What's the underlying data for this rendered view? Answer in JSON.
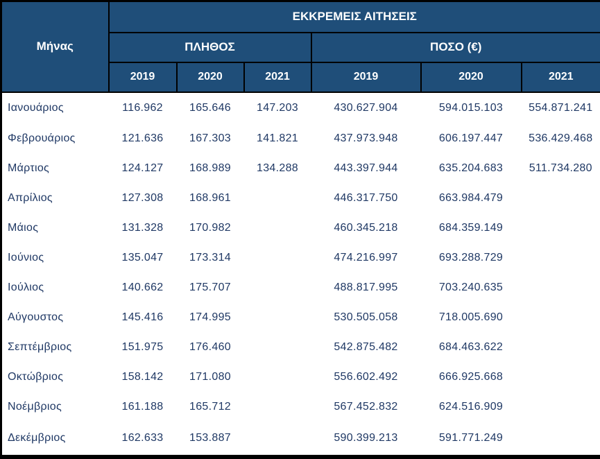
{
  "title": "ΕΚΚΡΕΜΕΙΣ ΑΙΤΗΣΕΙΣ",
  "header": {
    "month_col": "Μήνας",
    "count_group": "ΠΛΗΘΟΣ",
    "amount_group": "ΠΟΣΟ (€)",
    "years": [
      "2019",
      "2020",
      "2021"
    ]
  },
  "colors": {
    "header_bg": "#1F4E79",
    "header_text": "#FFFFFF",
    "data_text": "#1F3864",
    "border": "#000000",
    "row_bg": "#FFFFFF"
  },
  "chart_data": {
    "type": "table",
    "title": "ΕΚΚΡΕΜΕΙΣ ΑΙΤΗΣΕΙΣ",
    "column_groups": [
      "ΠΛΗΘΟΣ",
      "ΠΟΣΟ (€)"
    ],
    "years": [
      "2019",
      "2020",
      "2021"
    ],
    "columns": [
      "Μήνας",
      "ΠΛΗΘΟΣ 2019",
      "ΠΛΗΘΟΣ 2020",
      "ΠΛΗΘΟΣ 2021",
      "ΠΟΣΟ (€) 2019",
      "ΠΟΣΟ (€) 2020",
      "ΠΟΣΟ (€) 2021"
    ],
    "rows": [
      {
        "month": "Ιανουάριος",
        "count": [
          "116.962",
          "165.646",
          "147.203"
        ],
        "amount": [
          "430.627.904",
          "594.015.103",
          "554.871.241"
        ]
      },
      {
        "month": "Φεβρουάριος",
        "count": [
          "121.636",
          "167.303",
          "141.821"
        ],
        "amount": [
          "437.973.948",
          "606.197.447",
          "536.429.468"
        ]
      },
      {
        "month": "Μάρτιος",
        "count": [
          "124.127",
          "168.989",
          "134.288"
        ],
        "amount": [
          "443.397.944",
          "635.204.683",
          "511.734.280"
        ]
      },
      {
        "month": "Απρίλιος",
        "count": [
          "127.308",
          "168.961",
          ""
        ],
        "amount": [
          "446.317.750",
          "663.984.479",
          ""
        ]
      },
      {
        "month": "Μάιος",
        "count": [
          "131.328",
          "170.982",
          ""
        ],
        "amount": [
          "460.345.218",
          "684.359.149",
          ""
        ]
      },
      {
        "month": "Ιούνιος",
        "count": [
          "135.047",
          "173.314",
          ""
        ],
        "amount": [
          "474.216.997",
          "693.288.729",
          ""
        ]
      },
      {
        "month": "Ιούλιος",
        "count": [
          "140.662",
          "175.707",
          ""
        ],
        "amount": [
          "488.817.995",
          "703.240.635",
          ""
        ]
      },
      {
        "month": "Αύγουστος",
        "count": [
          "145.416",
          "174.995",
          ""
        ],
        "amount": [
          "530.505.058",
          "718.005.690",
          ""
        ]
      },
      {
        "month": "Σεπτέμβριος",
        "count": [
          "151.975",
          "176.460",
          ""
        ],
        "amount": [
          "542.875.482",
          "684.463.622",
          ""
        ]
      },
      {
        "month": "Οκτώβριος",
        "count": [
          "158.142",
          "171.080",
          ""
        ],
        "amount": [
          "556.602.492",
          "666.925.668",
          ""
        ]
      },
      {
        "month": "Νοέμβριος",
        "count": [
          "161.188",
          "165.712",
          ""
        ],
        "amount": [
          "567.452.832",
          "624.516.909",
          ""
        ]
      },
      {
        "month": "Δεκέμβριος",
        "count": [
          "162.633",
          "153.887",
          ""
        ],
        "amount": [
          "590.399.213",
          "591.771.249",
          ""
        ]
      }
    ]
  }
}
